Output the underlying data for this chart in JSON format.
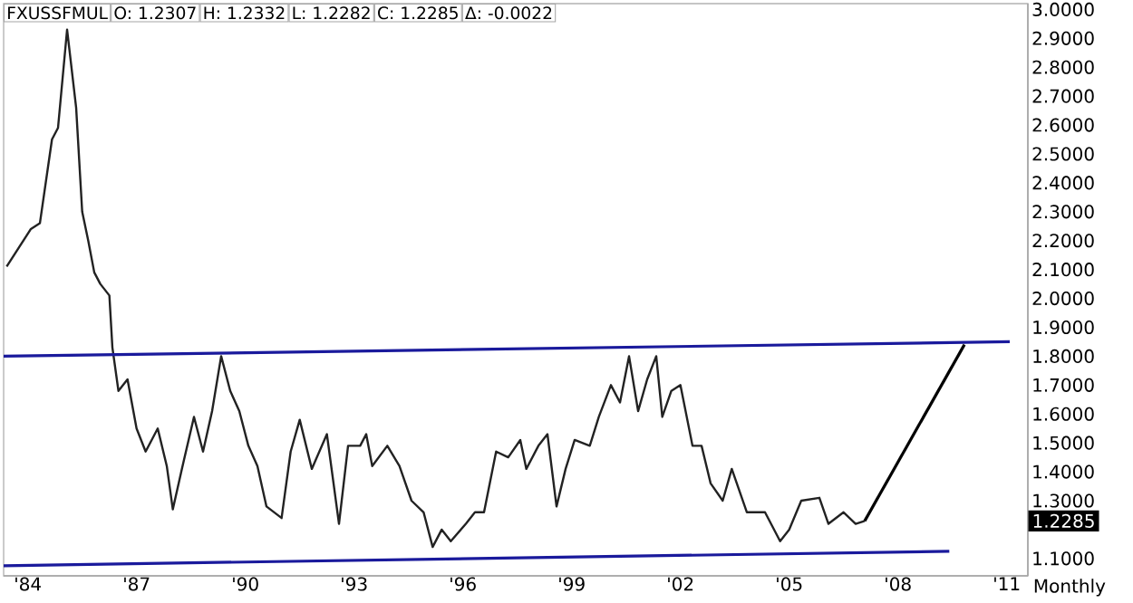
{
  "chart_data": {
    "type": "line",
    "title": "FXUSSFMUL",
    "xlabel": "Monthly",
    "annotations": [
      "O: 1.2307",
      "H: 1.2332",
      "L: 1.2282",
      "C: 1.2285",
      "Δ: -0.0022",
      "1.2285"
    ],
    "xlim": [
      "1983-05",
      "2011-08"
    ],
    "ylim": [
      1.04,
      3.02
    ],
    "xticks": [
      {
        "value": "1984-01",
        "label": "'84"
      },
      {
        "value": "1987-01",
        "label": "'87"
      },
      {
        "value": "1990-01",
        "label": "'90"
      },
      {
        "value": "1993-01",
        "label": "'93"
      },
      {
        "value": "1996-01",
        "label": "'96"
      },
      {
        "value": "1999-01",
        "label": "'99"
      },
      {
        "value": "2002-01",
        "label": "'02"
      },
      {
        "value": "2005-01",
        "label": "'05"
      },
      {
        "value": "2008-01",
        "label": "'08"
      },
      {
        "value": "2011-01",
        "label": "'11"
      }
    ],
    "yticks": [
      {
        "value": 1.1,
        "label": "1.1000"
      },
      {
        "value": 1.3,
        "label": "1.3000"
      },
      {
        "value": 1.4,
        "label": "1.4000"
      },
      {
        "value": 1.5,
        "label": "1.5000"
      },
      {
        "value": 1.6,
        "label": "1.6000"
      },
      {
        "value": 1.7,
        "label": "1.7000"
      },
      {
        "value": 1.8,
        "label": "1.8000"
      },
      {
        "value": 1.9,
        "label": "1.9000"
      },
      {
        "value": 2.0,
        "label": "2.0000"
      },
      {
        "value": 2.1,
        "label": "2.1000"
      },
      {
        "value": 2.2,
        "label": "2.2000"
      },
      {
        "value": 2.3,
        "label": "2.3000"
      },
      {
        "value": 2.4,
        "label": "2.4000"
      },
      {
        "value": 2.5,
        "label": "2.5000"
      },
      {
        "value": 2.6,
        "label": "2.6000"
      },
      {
        "value": 2.7,
        "label": "2.7000"
      },
      {
        "value": 2.8,
        "label": "2.8000"
      },
      {
        "value": 2.9,
        "label": "2.9000"
      },
      {
        "value": 3.0,
        "label": "3.0000"
      }
    ],
    "grid": false,
    "marker": "none",
    "line_style": "solid",
    "series": [
      {
        "color": "#222222",
        "x": [
          "1983-06",
          "1984-02",
          "1984-05",
          "1984-09",
          "1984-11",
          "1985-02",
          "1985-05",
          "1985-07",
          "1985-09",
          "1985-11",
          "1986-01",
          "1986-04",
          "1986-05",
          "1986-07",
          "1986-10",
          "1987-01",
          "1987-04",
          "1987-08",
          "1987-11",
          "1988-01",
          "1988-04",
          "1988-08",
          "1988-11",
          "1989-02",
          "1989-05",
          "1989-08",
          "1989-11",
          "1990-02",
          "1990-05",
          "1990-08",
          "1991-01",
          "1991-04",
          "1991-07",
          "1991-11",
          "1992-04",
          "1992-08",
          "1992-11",
          "1993-03",
          "1993-05",
          "1993-07",
          "1993-12",
          "1994-04",
          "1994-08",
          "1994-12",
          "1995-03",
          "1995-06",
          "1995-09",
          "1996-02",
          "1996-05",
          "1996-08",
          "1996-12",
          "1997-04",
          "1997-08",
          "1997-10",
          "1998-02",
          "1998-05",
          "1998-08",
          "1998-11",
          "1999-02",
          "1999-07",
          "1999-10",
          "2000-02",
          "2000-05",
          "2000-08",
          "2000-11",
          "2001-02",
          "2001-05",
          "2001-07",
          "2001-10",
          "2002-01",
          "2002-05",
          "2002-08",
          "2002-11",
          "2003-03",
          "2003-06",
          "2003-11",
          "2004-05",
          "2004-10",
          "2005-01",
          "2005-05",
          "2005-11",
          "2006-02",
          "2006-07",
          "2006-11",
          "2007-02"
        ],
        "values": [
          2.11,
          2.24,
          2.26,
          2.55,
          2.59,
          2.93,
          2.66,
          2.3,
          2.2,
          2.09,
          2.05,
          2.01,
          1.83,
          1.68,
          1.72,
          1.55,
          1.47,
          1.55,
          1.42,
          1.27,
          1.41,
          1.59,
          1.47,
          1.61,
          1.8,
          1.68,
          1.61,
          1.49,
          1.42,
          1.28,
          1.24,
          1.47,
          1.58,
          1.41,
          1.53,
          1.22,
          1.49,
          1.49,
          1.53,
          1.42,
          1.49,
          1.42,
          1.3,
          1.26,
          1.14,
          1.2,
          1.16,
          1.22,
          1.26,
          1.26,
          1.47,
          1.45,
          1.51,
          1.41,
          1.49,
          1.53,
          1.28,
          1.41,
          1.51,
          1.49,
          1.59,
          1.7,
          1.64,
          1.8,
          1.61,
          1.72,
          1.8,
          1.59,
          1.68,
          1.7,
          1.49,
          1.49,
          1.36,
          1.3,
          1.41,
          1.26,
          1.26,
          1.16,
          1.2,
          1.3,
          1.31,
          1.22,
          1.26,
          1.22,
          1.23
        ]
      },
      {
        "color": "#1a1a9c",
        "x": [
          "1983-05",
          "2011-02"
        ],
        "values": [
          1.8,
          1.85
        ]
      },
      {
        "color": "#1a1a9c",
        "x": [
          "1983-05",
          "2009-06"
        ],
        "values": [
          1.075,
          1.125
        ]
      },
      {
        "color": "#000000",
        "x": [
          "2007-02",
          "2009-11"
        ],
        "values": [
          1.23,
          1.84
        ]
      }
    ]
  }
}
